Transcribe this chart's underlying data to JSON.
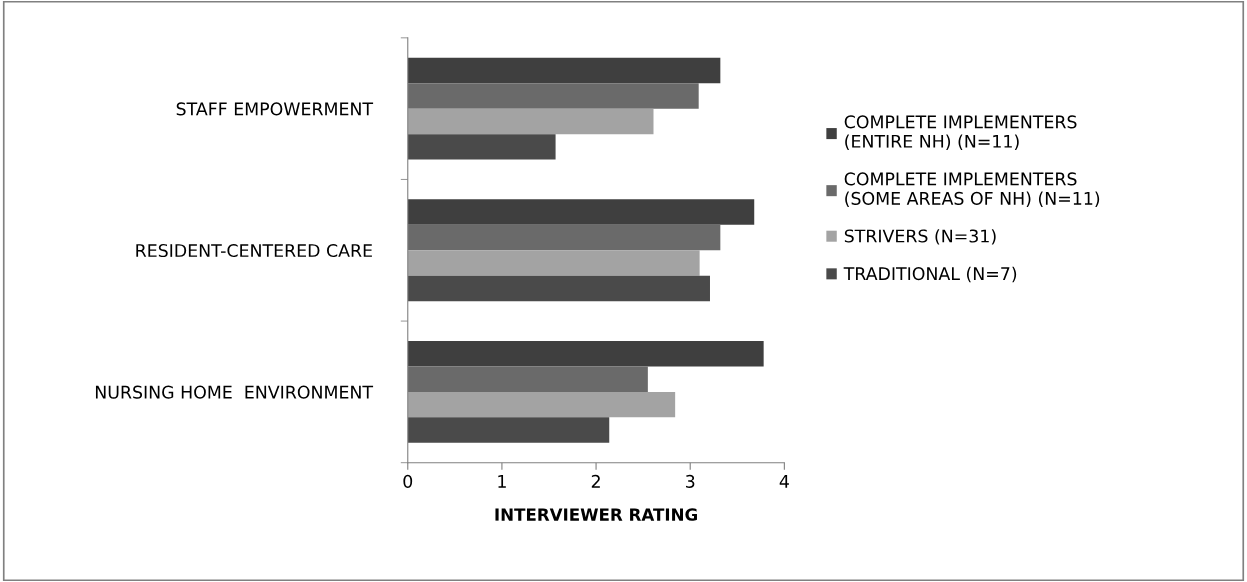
{
  "chart_data": {
    "type": "bar",
    "orientation": "horizontal",
    "xlabel": "INTERVIEWER RATING",
    "categories": [
      "STAFF EMPOWERMENT",
      "RESIDENT-CENTERED CARE",
      "NURSING HOME  ENVIRONMENT"
    ],
    "series": [
      {
        "name": "COMPLETE IMPLEMENTERS\n(ENTIRE NH) (N=11)",
        "color": "#3f3f3f",
        "values": [
          3.32,
          3.68,
          3.78
        ]
      },
      {
        "name": "COMPLETE IMPLEMENTERS\n(SOME AREAS OF NH) (N=11)",
        "color": "#6a6a6a",
        "values": [
          3.09,
          3.32,
          2.55
        ]
      },
      {
        "name": "STRIVERS (N=31)",
        "color": "#a3a3a3",
        "values": [
          2.61,
          3.1,
          2.84
        ]
      },
      {
        "name": "TRADITIONAL (N=7)",
        "color": "#4a4a4a",
        "values": [
          1.57,
          3.21,
          2.14
        ]
      }
    ],
    "xlim": [
      0,
      4
    ],
    "xticks": [
      0,
      1,
      2,
      3,
      4
    ],
    "grid": false,
    "legend": "right"
  }
}
